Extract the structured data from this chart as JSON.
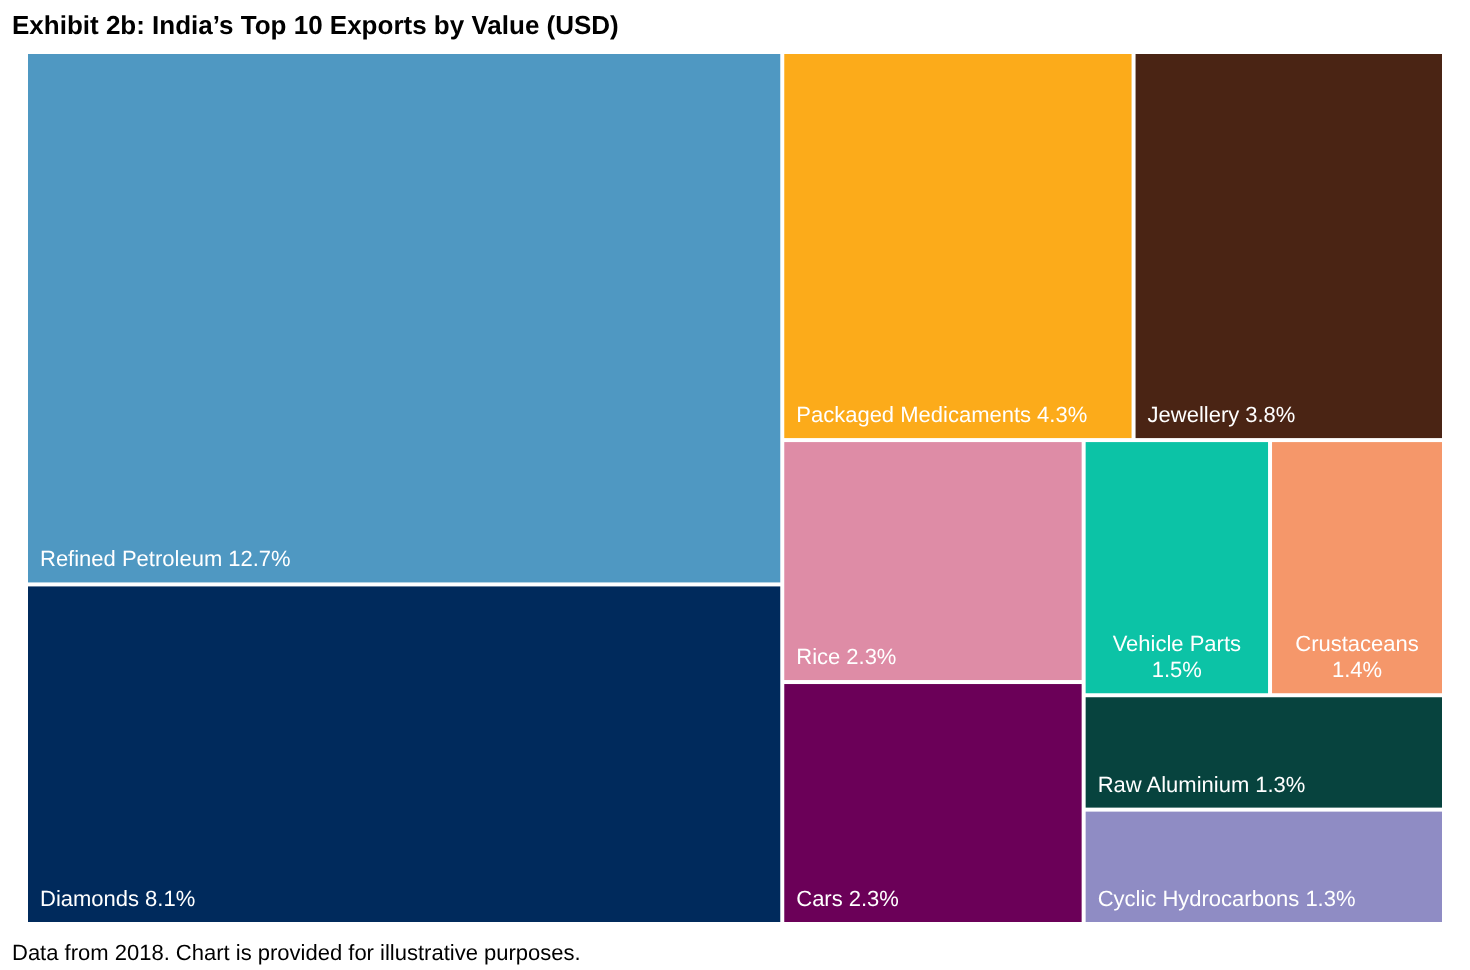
{
  "chart_data": {
    "type": "other",
    "title": "Exhibit 2b: India’s Top 10 Exports by Value (USD)",
    "categories": [
      "Refined Petroleum",
      "Diamonds",
      "Packaged Medicaments",
      "Jewellery",
      "Rice",
      "Cars",
      "Vehicle Parts",
      "Crustaceans",
      "Raw Aluminium",
      "Cyclic Hydrocarbons"
    ],
    "values": [
      12.7,
      8.1,
      4.3,
      3.8,
      2.3,
      2.3,
      1.5,
      1.4,
      1.3,
      1.3
    ],
    "value_labels": [
      "12.7%",
      "8.1%",
      "4.3%",
      "3.8%",
      "2.3%",
      "2.3%",
      "1.5%",
      "1.4%",
      "1.3%",
      "1.3%"
    ],
    "colors": [
      "#4f98c2",
      "#002a5c",
      "#fcab1a",
      "#4a2414",
      "#de8ca6",
      "#6b0058",
      "#0cc3a6",
      "#f5976a",
      "#07433e",
      "#8f8cc4"
    ],
    "annotations": [
      "Data from 2018. Chart is provided for illustrative purposes."
    ]
  }
}
